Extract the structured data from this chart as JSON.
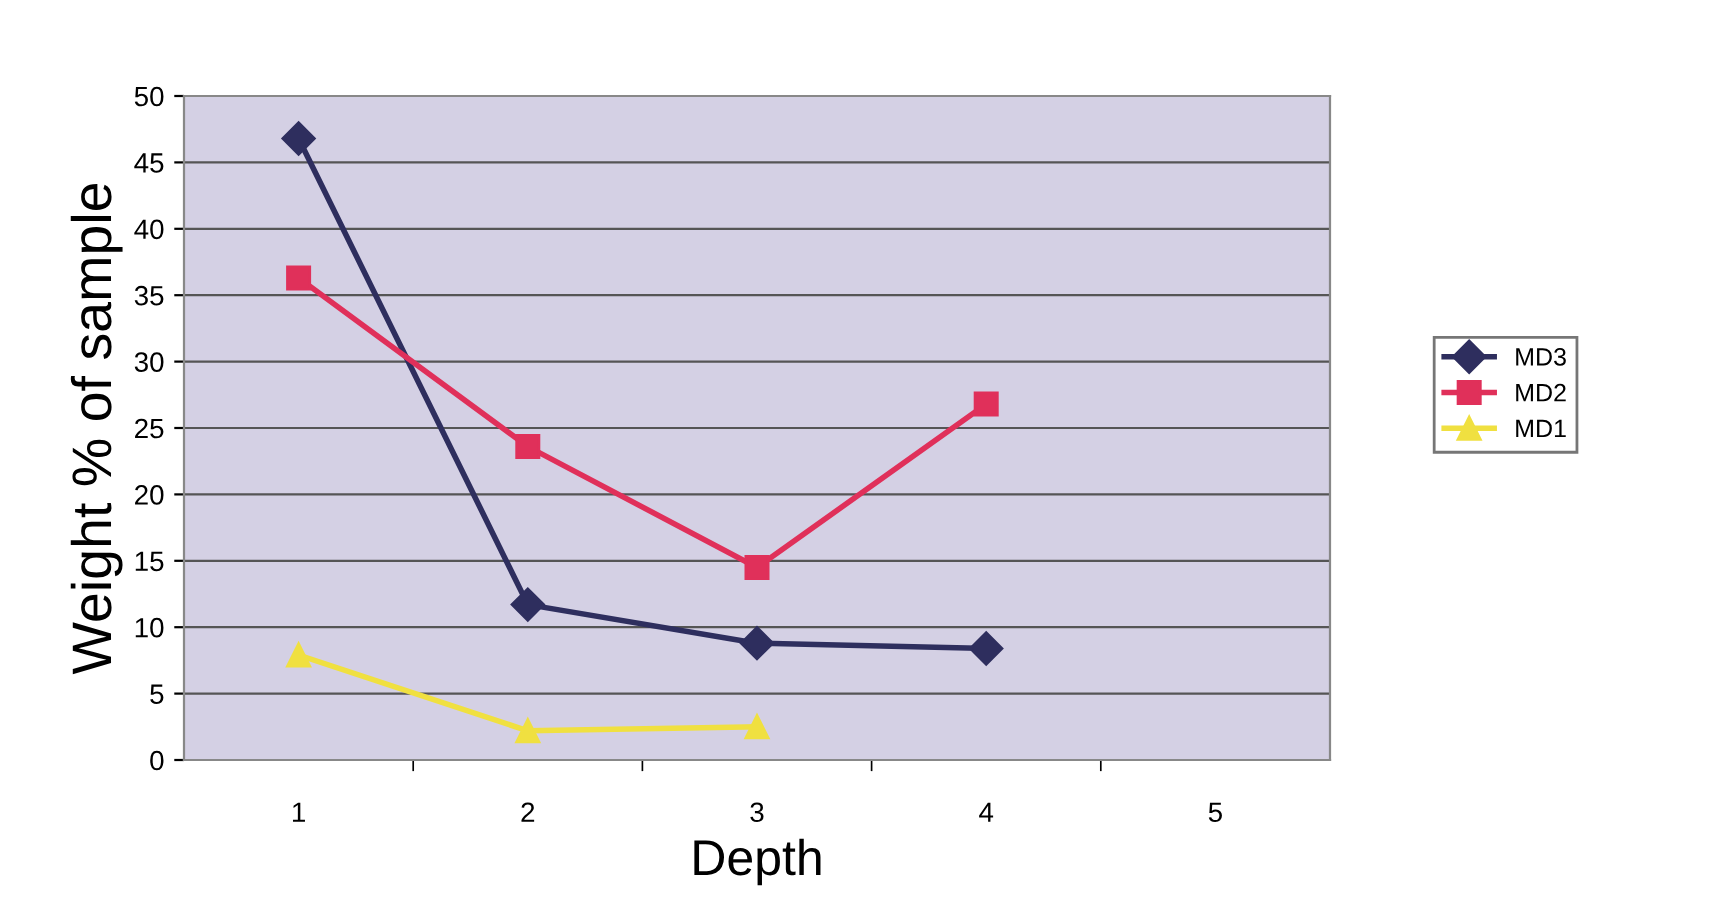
{
  "chart_data": {
    "type": "line",
    "xlabel": "Depth",
    "ylabel": "Weight % of sample",
    "categories": [
      "1",
      "2",
      "3",
      "4",
      "5"
    ],
    "ylim": [
      0,
      50
    ],
    "yticks": [
      0,
      5,
      10,
      15,
      20,
      25,
      30,
      35,
      40,
      45,
      50
    ],
    "grid": "y",
    "legend": "right",
    "series": [
      {
        "name": "MD3",
        "color": "#2e2e5e",
        "marker": "diamond",
        "values": [
          46.8,
          11.7,
          8.8,
          8.4,
          null
        ]
      },
      {
        "name": "MD2",
        "color": "#e0305a",
        "marker": "square",
        "values": [
          36.3,
          23.6,
          14.5,
          26.8,
          null
        ]
      },
      {
        "name": "MD1",
        "color": "#f0e040",
        "marker": "triangle",
        "values": [
          7.9,
          2.2,
          2.5,
          null,
          null
        ]
      }
    ]
  }
}
